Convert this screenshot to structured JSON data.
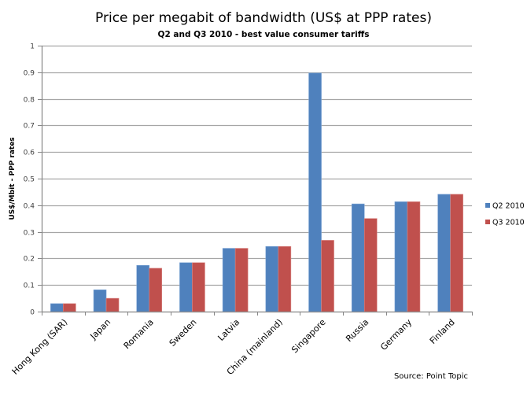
{
  "chart_data": {
    "type": "bar",
    "title": "Price per megabit of bandwidth (US$ at PPP rates)",
    "subtitle": "Q2 and Q3 2010 - best  value consumer tariffs",
    "xlabel": "",
    "ylabel": "US$/Mbit - PPP rates",
    "ylim": [
      0,
      1
    ],
    "yticks": [
      0,
      0.1,
      0.2,
      0.3,
      0.4,
      0.5,
      0.6,
      0.7,
      0.8,
      0.9,
      1
    ],
    "ytick_labels": [
      "0",
      "0.1",
      "0.2",
      "0.3",
      "0.4",
      "0.5",
      "0.6",
      "0.7",
      "0.8",
      "0.9",
      "1"
    ],
    "grid": true,
    "legend_position": "right",
    "categories": [
      "Hong Kong (SAR)",
      "Japan",
      "Romania",
      "Sweden",
      "Latvia",
      "China (mainland)",
      "Singapore",
      "Russia",
      "Germany",
      "Finland"
    ],
    "series": [
      {
        "name": "Q2 2010",
        "color": "#4F81BD",
        "values": [
          0.03,
          0.082,
          0.174,
          0.184,
          0.238,
          0.245,
          0.897,
          0.405,
          0.413,
          0.441
        ]
      },
      {
        "name": "Q3 2010",
        "color": "#C0504D",
        "values": [
          0.03,
          0.05,
          0.163,
          0.184,
          0.238,
          0.245,
          0.268,
          0.35,
          0.413,
          0.441
        ]
      }
    ],
    "source": "Source: Point Topic"
  },
  "colors": {
    "gridline": "#A6A6A6",
    "axis": "#868686"
  }
}
